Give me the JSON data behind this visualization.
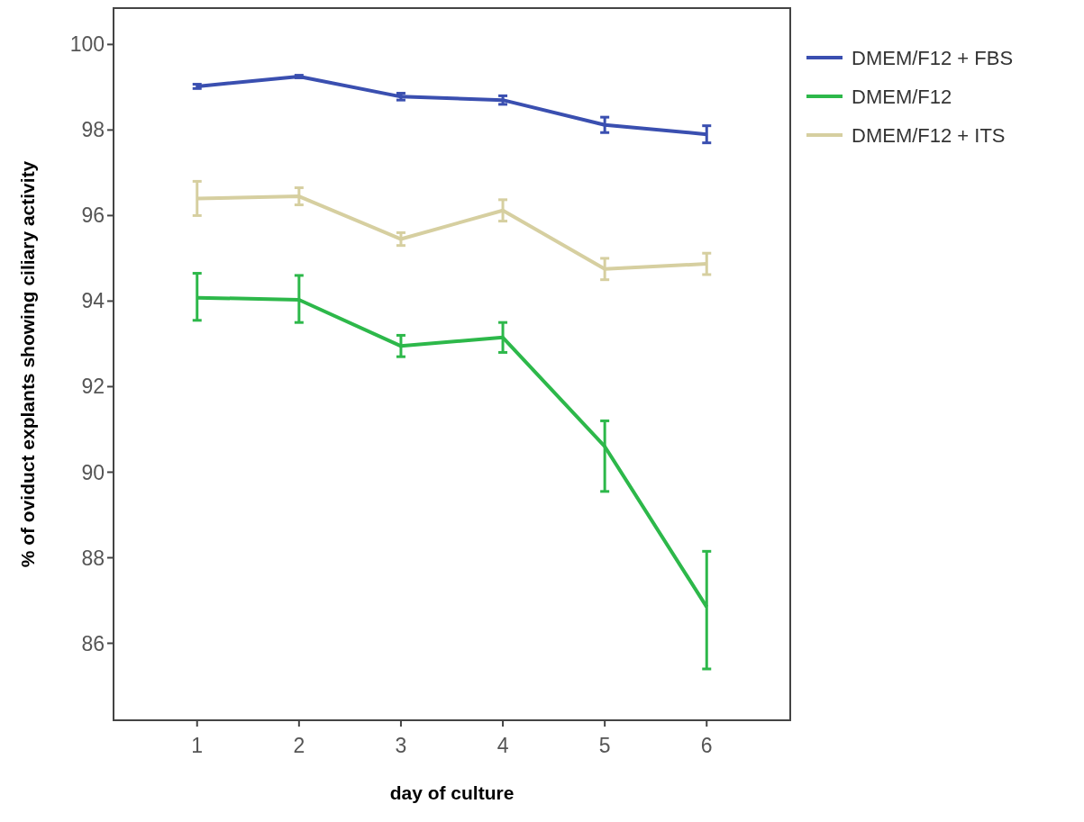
{
  "chart_data": {
    "type": "line",
    "xlabel": "day of culture",
    "ylabel": "% of oviduct explants showing ciliary activity",
    "x": [
      1,
      2,
      3,
      4,
      5,
      6
    ],
    "xlim": [
      0.18,
      6.82
    ],
    "xticks": [
      1,
      2,
      3,
      4,
      5,
      6
    ],
    "ylim": [
      84.2,
      100.85
    ],
    "yticks": [
      86,
      88,
      90,
      92,
      94,
      96,
      98,
      100
    ],
    "grid": false,
    "legend": "top right",
    "marker": "none",
    "line_style": "solid",
    "series": [
      {
        "name": "DMEM/F12 + FBS",
        "color": "#3a4fb0",
        "values": [
          99.02,
          99.25,
          98.78,
          98.7,
          98.12,
          97.9
        ],
        "errors": [
          0.05,
          0.03,
          0.08,
          0.1,
          0.18,
          0.2
        ]
      },
      {
        "name": "DMEM/F12",
        "color": "#2db84a",
        "values": [
          94.08,
          94.03,
          92.95,
          93.15,
          90.6,
          86.85
        ],
        "errors": [
          [
            93.55,
            94.65
          ],
          [
            93.5,
            94.6
          ],
          [
            92.7,
            93.2
          ],
          [
            92.8,
            93.5
          ],
          [
            89.55,
            91.2
          ],
          [
            85.4,
            88.15
          ]
        ]
      },
      {
        "name": "DMEM/F12 + ITS",
        "color": "#d6cfa0",
        "values": [
          96.4,
          96.45,
          95.45,
          96.12,
          94.75,
          94.87
        ],
        "errors": [
          0.4,
          0.2,
          0.15,
          0.25,
          0.25,
          0.25
        ]
      }
    ]
  }
}
